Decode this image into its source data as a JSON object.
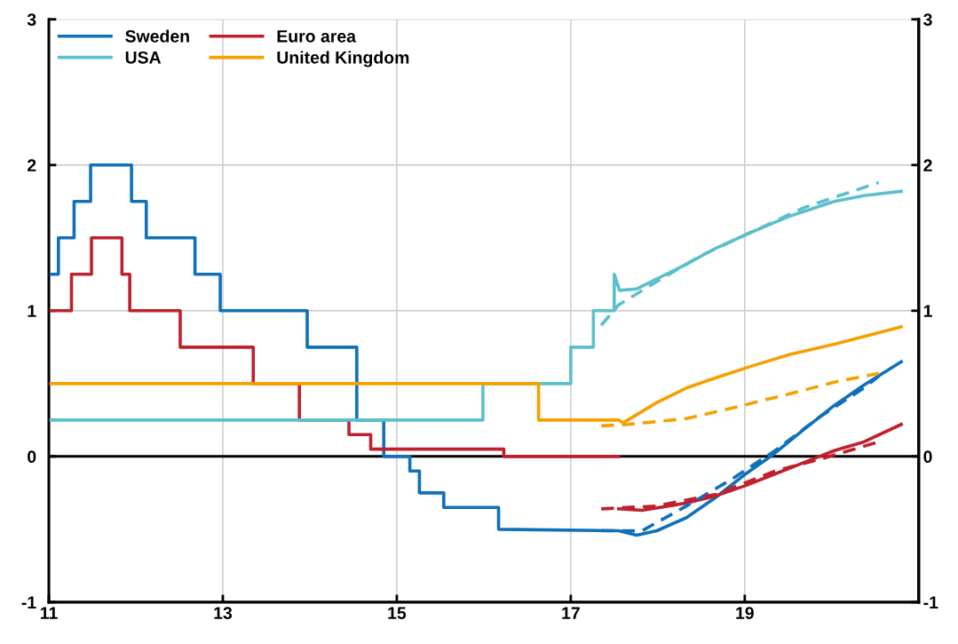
{
  "chart_data": {
    "type": "line",
    "xlim": [
      11,
      21
    ],
    "xticks": [
      11,
      13,
      15,
      17,
      19
    ],
    "ylim": [
      -1,
      3
    ],
    "yticks": [
      -1,
      0,
      1,
      2,
      3
    ],
    "y2lim": [
      -1,
      3
    ],
    "y2ticks": [
      -1,
      0,
      1,
      2,
      3
    ],
    "grid": true,
    "legend": "top left",
    "marker": "none",
    "ref_lines": [
      {
        "axis": "y",
        "value": 0,
        "color": "#000000"
      }
    ],
    "series": [
      {
        "name": "Sweden",
        "color": "#1070b8",
        "line_style": "solid",
        "x": [
          11.0,
          11.11,
          11.11,
          11.29,
          11.29,
          11.48,
          11.48,
          11.95,
          11.95,
          12.12,
          12.12,
          12.68,
          12.68,
          12.97,
          12.97,
          13.97,
          13.97,
          14.54,
          14.54,
          14.85,
          14.85,
          15.15,
          15.15,
          15.26,
          15.26,
          15.54,
          15.54,
          16.17,
          16.17,
          17.55,
          17.76,
          17.99,
          18.33,
          18.67,
          19.01,
          19.32,
          19.69,
          20.03,
          20.37,
          20.8
        ],
        "values": [
          1.25,
          1.25,
          1.5,
          1.5,
          1.75,
          1.75,
          2.0,
          2.0,
          1.75,
          1.75,
          1.5,
          1.5,
          1.25,
          1.25,
          1.0,
          1.0,
          0.75,
          0.75,
          0.25,
          0.25,
          0,
          0,
          -0.1,
          -0.1,
          -0.25,
          -0.25,
          -0.35,
          -0.35,
          -0.5,
          -0.51,
          -0.54,
          -0.51,
          -0.42,
          -0.28,
          -0.12,
          0.01,
          0.19,
          0.35,
          0.49,
          0.65
        ]
      },
      {
        "name": "Euro area",
        "color": "#c0202e",
        "line_style": "solid",
        "x": [
          11.0,
          11.26,
          11.26,
          11.49,
          11.49,
          11.84,
          11.84,
          11.93,
          11.93,
          12.51,
          12.51,
          13.35,
          13.35,
          13.88,
          13.88,
          14.45,
          14.45,
          14.7,
          14.7,
          16.23,
          16.23,
          17.55
        ],
        "values": [
          1.0,
          1.0,
          1.25,
          1.25,
          1.5,
          1.5,
          1.25,
          1.25,
          1.0,
          1.0,
          0.75,
          0.75,
          0.5,
          0.5,
          0.25,
          0.25,
          0.15,
          0.15,
          0.05,
          0.05,
          0,
          0
        ]
      },
      {
        "line_style": "solid",
        "color": "#c0202e",
        "x": [
          17.55,
          17.82,
          18.33,
          18.67,
          19.01,
          19.35,
          19.69,
          20.03,
          20.37,
          20.8
        ],
        "values": [
          -0.36,
          -0.37,
          -0.32,
          -0.27,
          -0.2,
          -0.12,
          -0.04,
          0.04,
          0.1,
          0.22
        ]
      },
      {
        "name": "USA",
        "color": "#5bc0cc",
        "line_style": "solid",
        "x": [
          11.0,
          15.99,
          15.99,
          17.0,
          17.0,
          17.26,
          17.26,
          17.5,
          17.5,
          17.56,
          17.76,
          18.33,
          18.67,
          19.08,
          19.52,
          20.03,
          20.37,
          20.8
        ],
        "values": [
          0.25,
          0.25,
          0.5,
          0.5,
          0.75,
          0.75,
          1.0,
          1.0,
          1.25,
          1.14,
          1.15,
          1.32,
          1.43,
          1.54,
          1.65,
          1.75,
          1.79,
          1.82
        ]
      },
      {
        "name": "United Kingdom",
        "color": "#f5a000",
        "line_style": "solid",
        "x": [
          11.0,
          16.63,
          16.63,
          17.55,
          17.6,
          17.99,
          18.33,
          18.67,
          19.08,
          19.52,
          20.03,
          20.8
        ],
        "values": [
          0.5,
          0.5,
          0.25,
          0.25,
          0.23,
          0.37,
          0.47,
          0.54,
          0.62,
          0.7,
          0.77,
          0.89
        ]
      },
      {
        "line_style": "dashed",
        "color": "#1070b8",
        "x": [
          17.35,
          17.82,
          18.33,
          18.84,
          19.35,
          19.86,
          20.37,
          20.54
        ],
        "values": [
          -0.51,
          -0.51,
          -0.34,
          -0.16,
          0.04,
          0.27,
          0.47,
          0.55
        ]
      },
      {
        "line_style": "dashed",
        "color": "#c0202e",
        "x": [
          17.35,
          17.99,
          18.67,
          19.35,
          19.86,
          20.54
        ],
        "values": [
          -0.36,
          -0.34,
          -0.26,
          -0.1,
          -0.02,
          0.1
        ]
      },
      {
        "line_style": "dashed",
        "color": "#5bc0cc",
        "x": [
          17.35,
          17.55,
          17.99,
          18.5,
          19.08,
          19.69,
          20.54
        ],
        "values": [
          0.9,
          1.04,
          1.2,
          1.38,
          1.54,
          1.71,
          1.88
        ]
      },
      {
        "line_style": "dashed",
        "color": "#f5a000",
        "x": [
          17.35,
          17.66,
          18.33,
          18.84,
          19.52,
          20.03,
          20.54
        ],
        "values": [
          0.21,
          0.22,
          0.26,
          0.33,
          0.43,
          0.51,
          0.57
        ]
      }
    ]
  }
}
